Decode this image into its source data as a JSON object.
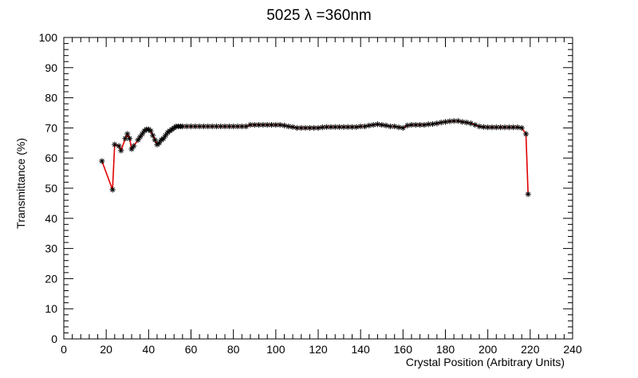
{
  "chart_data": {
    "type": "line",
    "title": "5025 λ =360nm",
    "xlabel": "Crystal Position (Arbitrary Units)",
    "ylabel": "Transmittance (%)",
    "xlim": [
      0,
      240
    ],
    "ylim": [
      0,
      100
    ],
    "x_ticks": [
      0,
      20,
      40,
      60,
      80,
      100,
      120,
      140,
      160,
      180,
      200,
      220,
      240
    ],
    "y_ticks": [
      0,
      10,
      20,
      30,
      40,
      50,
      60,
      70,
      80,
      90,
      100
    ],
    "grid": false,
    "line_color": "#e00000",
    "marker_color": "#000000",
    "marker": "asterisk",
    "series": [
      {
        "x": [
          18,
          23,
          24,
          26,
          27,
          29,
          30,
          31,
          32,
          33,
          35,
          36,
          37,
          38,
          39,
          40,
          41,
          42,
          43,
          44,
          45,
          46,
          47,
          48,
          49,
          50,
          51,
          52,
          53,
          54,
          55,
          56,
          58,
          60,
          62,
          64,
          66,
          68,
          70,
          72,
          74,
          76,
          78,
          80,
          82,
          84,
          86,
          88,
          90,
          92,
          94,
          96,
          98,
          100,
          102,
          104,
          106,
          108,
          110,
          112,
          114,
          116,
          118,
          120,
          122,
          124,
          126,
          128,
          130,
          132,
          134,
          136,
          138,
          140,
          142,
          144,
          146,
          148,
          150,
          152,
          154,
          156,
          158,
          160,
          162,
          164,
          166,
          168,
          170,
          172,
          174,
          176,
          178,
          180,
          182,
          184,
          186,
          188,
          190,
          192,
          194,
          196,
          198,
          200,
          202,
          204,
          206,
          208,
          210,
          212,
          214,
          216,
          218,
          219
        ],
        "y": [
          59,
          49.5,
          64.5,
          64,
          62.5,
          66.5,
          68,
          66.5,
          63,
          64,
          66,
          67,
          68,
          69,
          69.5,
          69.5,
          69,
          67.5,
          66,
          64.5,
          65,
          66,
          66.5,
          67.5,
          68.5,
          69,
          69.5,
          70,
          70.5,
          70.5,
          70.5,
          70.5,
          70.5,
          70.5,
          70.5,
          70.5,
          70.5,
          70.5,
          70.5,
          70.5,
          70.5,
          70.5,
          70.5,
          70.5,
          70.5,
          70.5,
          70.5,
          71,
          71,
          71,
          71,
          71,
          71,
          71,
          71,
          70.8,
          70.5,
          70.3,
          70,
          70,
          70,
          70,
          70,
          70,
          70.2,
          70.3,
          70.3,
          70.3,
          70.3,
          70.3,
          70.3,
          70.3,
          70.3,
          70.5,
          70.5,
          70.8,
          71,
          71.2,
          71,
          70.8,
          70.5,
          70.5,
          70.2,
          70,
          70.8,
          71,
          71,
          71,
          71,
          71.2,
          71.3,
          71.5,
          71.8,
          72,
          72.2,
          72.3,
          72.3,
          72,
          71.8,
          71.5,
          71,
          70.5,
          70.3,
          70.2,
          70.2,
          70.2,
          70.2,
          70.2,
          70.2,
          70.2,
          70.2,
          70,
          68,
          48
        ]
      }
    ]
  }
}
